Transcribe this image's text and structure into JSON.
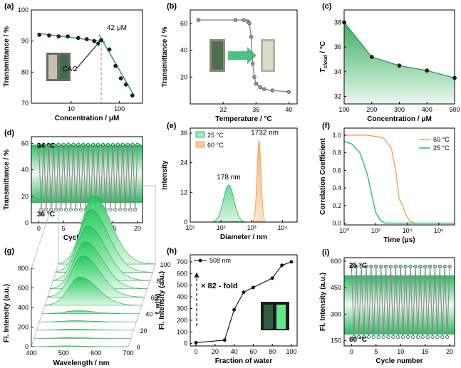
{
  "chart_data": [
    {
      "panel": "(a)",
      "type": "scatter",
      "xlabel": "Concentration / μM",
      "ylabel": "Transmittance / %",
      "xscale": "log",
      "xlim": [
        1.5,
        300
      ],
      "ylim": [
        70,
        100
      ],
      "xticks": [
        10,
        100
      ],
      "xticklabels": [
        "10",
        "100"
      ],
      "yticks": [
        70,
        80,
        90,
        100
      ],
      "yticklabels": [
        "70",
        "80",
        "90",
        "100"
      ],
      "x": [
        2.2,
        3.5,
        5.5,
        8.5,
        14,
        21,
        30,
        42,
        62,
        83,
        107,
        136,
        185
      ],
      "y": [
        92,
        91.8,
        91.5,
        91.5,
        91,
        90.6,
        90,
        90.3,
        87.3,
        82,
        78,
        76,
        72.5
      ],
      "fit_lines": [
        {
          "x": [
            2,
            50
          ],
          "y": [
            92.5,
            89.8
          ]
        },
        {
          "x": [
            38,
            200
          ],
          "y": [
            92,
            72.5
          ]
        }
      ],
      "vline_x": 42,
      "annotations": [
        "42 μM",
        "CAC"
      ]
    },
    {
      "panel": "(b)",
      "type": "line",
      "xlabel": "Temperature / °C",
      "ylabel": "Transmittance / %",
      "xlim": [
        28,
        41
      ],
      "ylim": [
        0,
        70
      ],
      "xticks": [
        32,
        36,
        40
      ],
      "yticks": [
        20,
        40,
        60
      ],
      "x": [
        29,
        33.5,
        34.5,
        35,
        35.2,
        35.4,
        35.6,
        35.8,
        36,
        36.5,
        37,
        38,
        40
      ],
      "y": [
        62.5,
        62.5,
        62.5,
        61.5,
        60,
        50,
        30,
        20,
        15,
        12.5,
        11,
        10,
        9
      ]
    },
    {
      "panel": "(c)",
      "type": "area",
      "xlabel": "Concentration / μM",
      "ylabel": "T_cloud / °C",
      "xlim": [
        100,
        500
      ],
      "ylim": [
        31.4,
        39
      ],
      "xticks": [
        100,
        200,
        300,
        400,
        500
      ],
      "yticks": [
        32,
        34,
        36,
        38
      ],
      "x": [
        100,
        200,
        300,
        400,
        500
      ],
      "y": [
        38,
        35.2,
        34.5,
        34.1,
        33.5
      ]
    },
    {
      "panel": "(d)",
      "type": "line",
      "xlabel": "Cycle number",
      "ylabel": "Transmittance / %",
      "xlim": [
        -1.5,
        21
      ],
      "ylim": [
        0,
        65
      ],
      "xticks": [
        0,
        5,
        10,
        15,
        20
      ],
      "yticks": [
        0,
        20,
        40,
        60
      ],
      "high_value": 59,
      "low_value": 10,
      "annotations": [
        "34 °C",
        "36 °C"
      ]
    },
    {
      "panel": "(e)",
      "type": "area",
      "xlabel": "Diameter / nm",
      "ylabel": "Intensity",
      "xscale": "log",
      "xlim": [
        10,
        30000
      ],
      "ylim": [
        0,
        38
      ],
      "xticks": [
        10,
        100,
        1000,
        10000
      ],
      "xticklabels": [
        "10¹",
        "10²",
        "10³",
        "10⁴"
      ],
      "yticks": [
        0,
        12,
        24,
        36
      ],
      "series": [
        {
          "name": "25 °C",
          "center": 178,
          "peak": 15,
          "label": "178 nm",
          "color": "#35c26a"
        },
        {
          "name": "60 °C",
          "center": 1732,
          "peak": 33,
          "label": "1732 nm",
          "color": "#f2a65a"
        }
      ]
    },
    {
      "panel": "(f)",
      "type": "line",
      "xlabel": "Time (μs)",
      "ylabel": "Correlation Coefficient",
      "xscale": "log",
      "xlim": [
        1,
        10000000
      ],
      "ylim": [
        -0.02,
        1.08
      ],
      "xticks": [
        1,
        100,
        10000,
        1000000
      ],
      "xticklabels": [
        "10⁰",
        "10²",
        "10⁴",
        "10⁶"
      ],
      "yticks": [
        0,
        0.2,
        0.4,
        0.6,
        0.8,
        1.0
      ],
      "yticklabels": [
        "0.0",
        "0.2",
        "0.4",
        "0.6",
        "0.8",
        "1.0"
      ],
      "series": [
        {
          "name": "60 °C",
          "color": "#f2a65a",
          "x": [
            1,
            30,
            300,
            1000,
            2000,
            3000,
            5000,
            8000,
            15000,
            30000
          ],
          "y": [
            1.0,
            1.0,
            0.97,
            0.85,
            0.55,
            0.28,
            0.2,
            0.1,
            0.02,
            0.0
          ]
        },
        {
          "name": "25 °C",
          "color": "#35c26a",
          "x": [
            1,
            3,
            10,
            30,
            60,
            100,
            200,
            400,
            1000,
            10000000
          ],
          "y": [
            0.93,
            0.9,
            0.8,
            0.55,
            0.3,
            0.12,
            0.03,
            0.0,
            0.0,
            0.0
          ]
        }
      ]
    },
    {
      "panel": "(g)",
      "type": "area",
      "xlabel": "Wavelength / nm",
      "ylabel": "Fl. Intensity (a.u.)",
      "zlabel": "f_w(%)",
      "xticks": [
        400,
        500,
        600,
        700
      ],
      "yticks": [
        0,
        200,
        400,
        600,
        800
      ],
      "zticks": [
        0,
        20,
        40,
        60,
        80,
        100
      ],
      "fw": [
        0,
        10,
        20,
        30,
        40,
        50,
        60,
        70,
        80,
        90,
        100
      ],
      "peak_intensity": [
        8,
        8,
        10,
        12,
        30,
        290,
        420,
        480,
        560,
        640,
        700
      ],
      "peak_wavelength": 508
    },
    {
      "panel": "(h)",
      "type": "line",
      "xlabel": "Fraction of water",
      "ylabel": "Fl. Intensity (a.u.)",
      "xlim": [
        -6,
        106
      ],
      "ylim": [
        -20,
        760
      ],
      "xticks": [
        0,
        20,
        40,
        60,
        80,
        100
      ],
      "yticks": [
        0,
        100,
        200,
        300,
        400,
        500,
        600,
        700
      ],
      "legend": "508 nm",
      "x": [
        0,
        30,
        40,
        50,
        60,
        80,
        90,
        100
      ],
      "y": [
        8,
        30,
        290,
        440,
        480,
        560,
        670,
        700
      ],
      "annotations": [
        "× 82 - fold"
      ]
    },
    {
      "panel": "(i)",
      "type": "line",
      "xlabel": "Cycle number",
      "ylabel": "Fl. Intensity (a.u.)",
      "xlim": [
        -1.5,
        21
      ],
      "ylim": [
        120,
        620
      ],
      "xticks": [
        0,
        5,
        10,
        15,
        20
      ],
      "yticks": [
        150,
        300,
        450,
        600
      ],
      "high_value": 570,
      "low_value": 170,
      "annotations": [
        "25 °C",
        "60 °C"
      ]
    }
  ]
}
